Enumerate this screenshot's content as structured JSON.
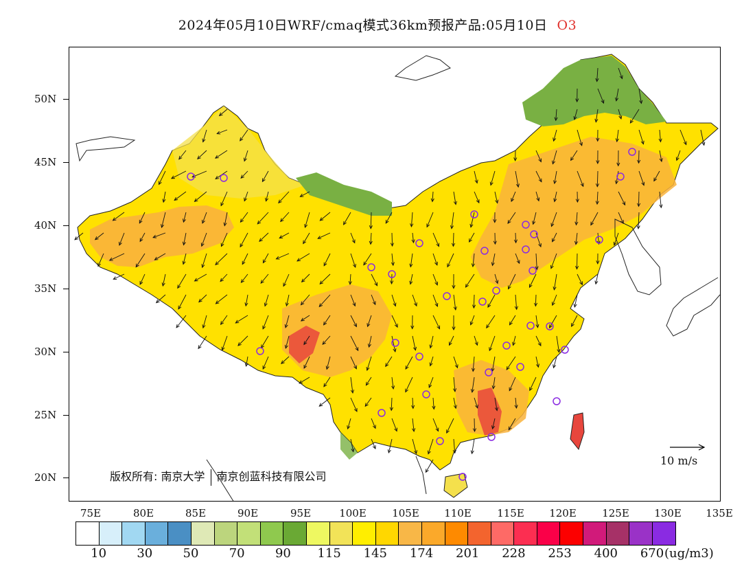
{
  "title": {
    "main": "2024年05月10日WRF/cmaq模式36km预报产品:05月10日",
    "species": "O3"
  },
  "map": {
    "lat_labels": [
      "50N",
      "45N",
      "40N",
      "35N",
      "30N",
      "25N",
      "20N"
    ],
    "lon_labels": [
      "75E",
      "80E",
      "85E",
      "90E",
      "95E",
      "100E",
      "105E",
      "110E",
      "115E",
      "120E",
      "125E",
      "130E",
      "135E"
    ],
    "copyright": {
      "prefix": "版权所有:",
      "org1": "南京大学",
      "org2": "南京创蓝科技有限公司"
    },
    "wind_reference": "10 m/s",
    "colors": {
      "ocean": "#ffffff",
      "land_yellow": "#ffe100",
      "land_light_yellow": "#f4e04c",
      "land_orange": "#f9b33c",
      "land_green": "#79b043",
      "hotspot_red": "#e8463d"
    }
  },
  "colorbar": {
    "colors": [
      "#ffffff",
      "#d7effa",
      "#a1d8f2",
      "#6aafdc",
      "#4a8fc4",
      "#dfe9b6",
      "#bcd57d",
      "#c2e078",
      "#8fc94e",
      "#6aa934",
      "#eef861",
      "#f2e358",
      "#ffee00",
      "#ffd700",
      "#f8b747",
      "#fba92a",
      "#fe8a00",
      "#f3642e",
      "#fe6a66",
      "#fc2e51",
      "#fa0048",
      "#fc0000",
      "#d11a7a",
      "#a63167",
      "#9a32c7",
      "#8a2be2"
    ],
    "labels": [
      "10",
      "30",
      "50",
      "70",
      "90",
      "115",
      "145",
      "174",
      "201",
      "228",
      "253",
      "400",
      "670"
    ],
    "unit": "(ug/m3)"
  }
}
